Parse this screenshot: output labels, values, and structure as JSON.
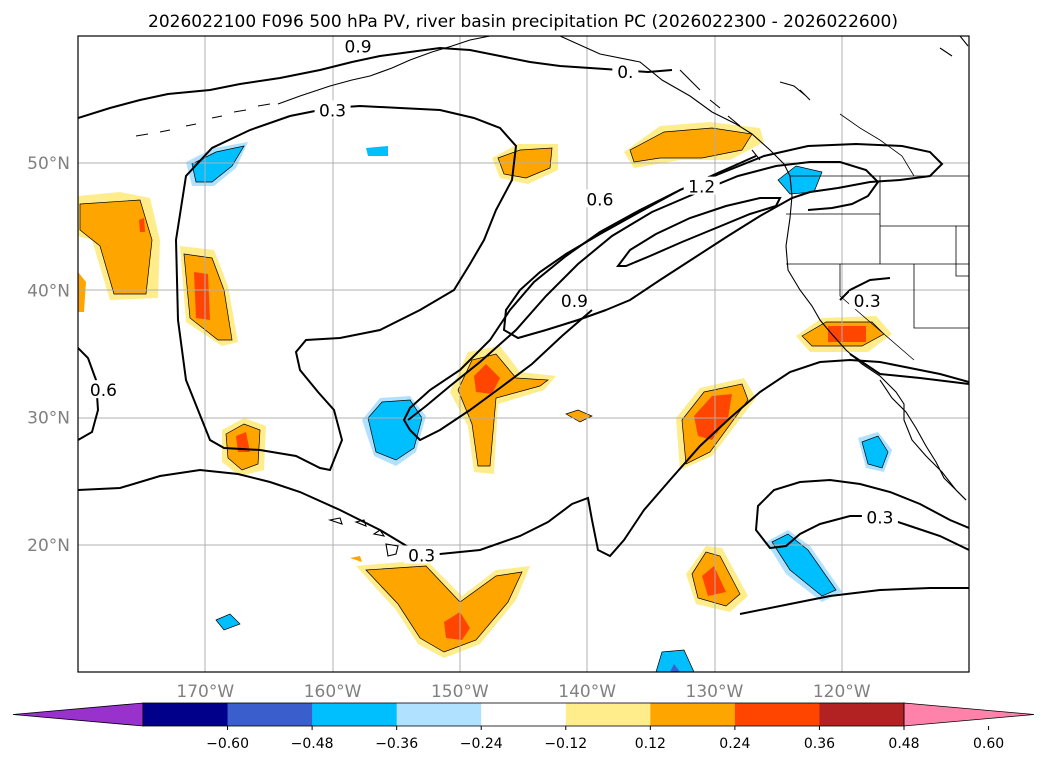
{
  "chart_data": {
    "type": "contour-map",
    "title": "2026022100 F096 500 hPa PV, river basin precipitation PC (2026022300 - 2026022600)",
    "lon_range": [
      -180,
      -110
    ],
    "lat_range": [
      10,
      60
    ],
    "lon_ticks": [
      {
        "value": -170,
        "label": "170°W"
      },
      {
        "value": -160,
        "label": "160°W"
      },
      {
        "value": -150,
        "label": "150°W"
      },
      {
        "value": -140,
        "label": "140°W"
      },
      {
        "value": -130,
        "label": "130°W"
      },
      {
        "value": -120,
        "label": "120°W"
      }
    ],
    "lat_ticks": [
      {
        "value": 50,
        "label": "50°N"
      },
      {
        "value": 40,
        "label": "40°N"
      },
      {
        "value": 30,
        "label": "30°N"
      },
      {
        "value": 20,
        "label": "20°N"
      }
    ],
    "grid": true,
    "colorbar": {
      "orientation": "horizontal",
      "extend": "both",
      "levels": [
        -0.6,
        -0.48,
        -0.36,
        -0.24,
        -0.12,
        0.12,
        0.24,
        0.36,
        0.48,
        0.6
      ],
      "tick_labels": [
        "−0.60",
        "−0.48",
        "−0.36",
        "−0.24",
        "−0.12",
        "0.12",
        "0.24",
        "0.36",
        "0.48",
        "0.60"
      ],
      "colors": [
        "#9932CC",
        "#00008B",
        "#3A5FCD",
        "#00BFFF",
        "#B0E2FF",
        "#FFFFFF",
        "#FFEC8B",
        "#FFA500",
        "#FF4500",
        "#B22222",
        "#FF82AB"
      ]
    },
    "pv_contour_labels": [
      {
        "label": "0.9",
        "lon": -158,
        "lat": 59
      },
      {
        "label": "0.",
        "lon": -137,
        "lat": 57
      },
      {
        "label": "0.3",
        "lon": -160,
        "lat": 54
      },
      {
        "label": "0.6",
        "lon": -139,
        "lat": 47
      },
      {
        "label": "1.2",
        "lon": -131,
        "lat": 48
      },
      {
        "label": "0.3",
        "lon": -118,
        "lat": 39
      },
      {
        "label": "0.9",
        "lon": -141,
        "lat": 39
      },
      {
        "label": "0.6",
        "lon": -178,
        "lat": 32
      },
      {
        "label": "0.3",
        "lon": -153,
        "lat": 19
      },
      {
        "label": "0.3",
        "lon": -117,
        "lat": 22
      }
    ],
    "precip_anomalies": [
      {
        "lon": -170,
        "lat": 50.2,
        "value": -0.24
      },
      {
        "lon": -158,
        "lat": 51,
        "value": -0.24
      },
      {
        "lon": -156,
        "lat": 29.5,
        "value": -0.24
      },
      {
        "lon": -124,
        "lat": 48.5,
        "value": -0.24
      },
      {
        "lon": -116,
        "lat": 27.5,
        "value": -0.24
      },
      {
        "lon": -123,
        "lat": 18.5,
        "value": -0.24
      },
      {
        "lon": -132,
        "lat": 10.5,
        "value": -0.24
      },
      {
        "lon": -168,
        "lat": 14,
        "value": -0.24
      },
      {
        "lon": -176,
        "lat": 44,
        "value": 0.36
      },
      {
        "lon": -170.5,
        "lat": 39.5,
        "value": 0.36
      },
      {
        "lon": -167,
        "lat": 27.5,
        "value": 0.36
      },
      {
        "lon": -148,
        "lat": 33,
        "value": 0.36
      },
      {
        "lon": -145.5,
        "lat": 50,
        "value": 0.24
      },
      {
        "lon": -131.5,
        "lat": 51.5,
        "value": 0.24
      },
      {
        "lon": -120,
        "lat": 36.5,
        "value": 0.36
      },
      {
        "lon": -130,
        "lat": 29.5,
        "value": 0.36
      },
      {
        "lon": -130.5,
        "lat": 17,
        "value": 0.36
      },
      {
        "lon": -150.5,
        "lat": 14.5,
        "value": 0.36
      },
      {
        "lon": -141,
        "lat": 30,
        "value": 0.24
      },
      {
        "lon": -180,
        "lat": 40,
        "value": 0.24
      }
    ]
  }
}
